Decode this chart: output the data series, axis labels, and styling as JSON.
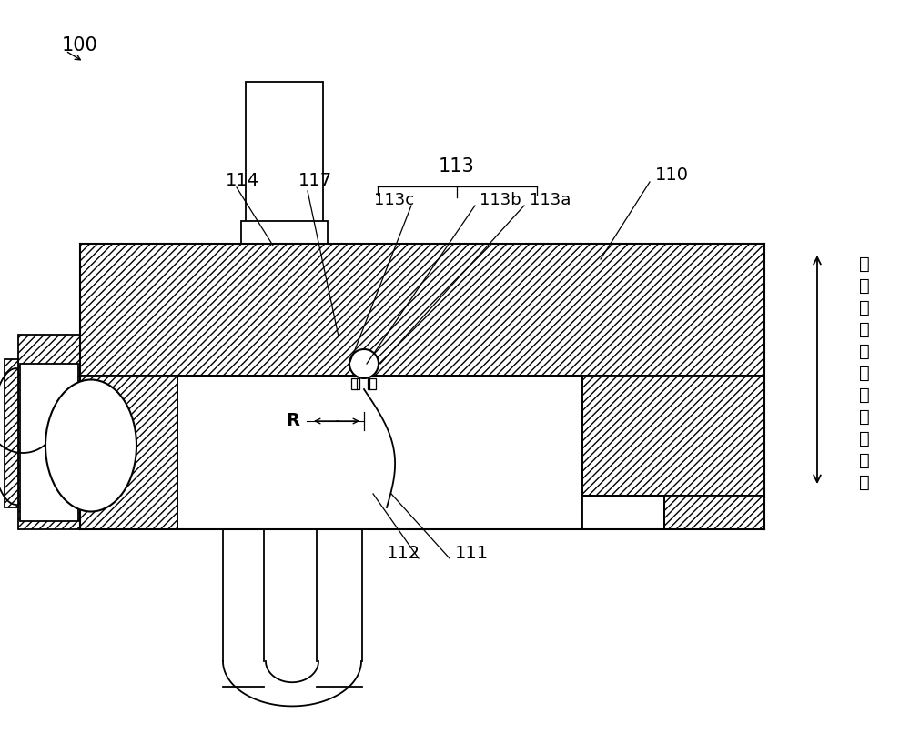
{
  "bg_color": "#ffffff",
  "lc": "#000000",
  "hc": "#555555",
  "label_100": "100",
  "label_110": "110",
  "label_111": "111",
  "label_112": "112",
  "label_113": "113",
  "label_113a": "113a",
  "label_113b": "113b",
  "label_113c": "113c",
  "label_114": "114",
  "label_117": "117",
  "label_R": "R",
  "side_text": "盘本体的底壁的厚度方向",
  "figsize": [
    10.0,
    8.06
  ],
  "dpi": 100
}
